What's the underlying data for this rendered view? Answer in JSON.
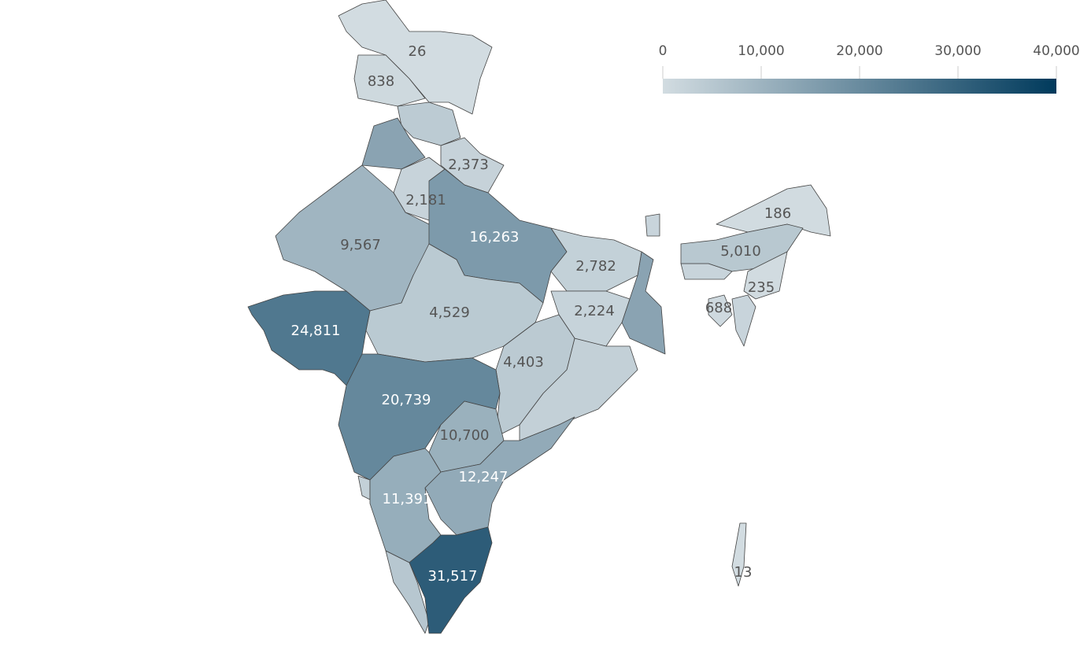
{
  "chart_data": {
    "type": "choropleth",
    "values": [
      26,
      838,
      2373,
      2181,
      9567,
      16263,
      2782,
      2224,
      4529,
      24811,
      4403,
      20739,
      10700,
      12247,
      11391,
      31517,
      186,
      5010,
      235,
      688,
      13
    ],
    "value_labels": [
      "26",
      "838",
      "2,373",
      "2,181",
      "9,567",
      "16,263",
      "2,782",
      "2,224",
      "4,529",
      "24,811",
      "4,403",
      "20,739",
      "10,700",
      "12,247",
      "11,391",
      "31,517",
      "186",
      "5,010",
      "235",
      "688",
      "13"
    ],
    "colorscale": [
      "#d2dce1",
      "#003a5c"
    ],
    "clim": [
      0,
      40000
    ],
    "cticks": [
      0,
      {
        "value": 10000,
        "label": "10,000"
      },
      {
        "value": 20000,
        "label": "20,000"
      },
      {
        "value": 30000,
        "label": "30,000"
      },
      {
        "value": 40000,
        "label": "40,000"
      }
    ]
  }
}
